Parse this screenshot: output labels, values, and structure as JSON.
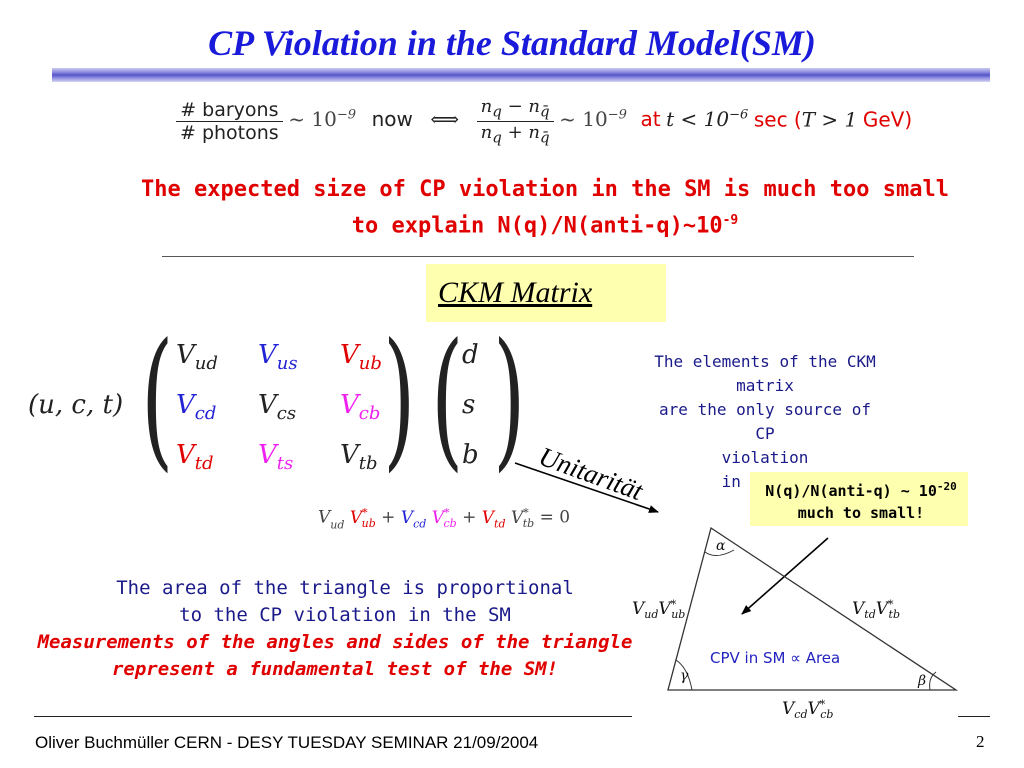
{
  "slide": {
    "title": "CP Violation in the Standard Model(SM)",
    "page_number": "2",
    "footer": "Oliver Buchmüller CERN - DESY TUESDAY SEMINAR 21/09/2004"
  },
  "equation": {
    "baryons": "# baryons",
    "photons": "# photons",
    "sim1": "~ 10",
    "exp1": "−9",
    "now": "now",
    "iff": "⟺",
    "nq_num": "n",
    "nq_sub": "q",
    "minus": " − ",
    "plus": " + ",
    "nqbar_sub": "q̄",
    "sim2": "~ 10",
    "exp2": "−9",
    "at": "at",
    "t_lt": "t < 10",
    "exp3": "−6",
    "sec": "sec (",
    "T_gt": "T > 1",
    "gev": "GeV)"
  },
  "warning": {
    "line1": "The expected size of CP violation in the SM is much too small",
    "line2_prefix": "to explain N(q)/N(anti-q)~10",
    "line2_exp": "-9"
  },
  "ckm": {
    "label": "CKM Matrix",
    "row_vector": "(u, c, t)",
    "matrix": [
      [
        {
          "v": "V",
          "s": "ud",
          "color": "#222222"
        },
        {
          "v": "V",
          "s": "us",
          "color": "#2323d6"
        },
        {
          "v": "V",
          "s": "ub",
          "color": "#e00000"
        }
      ],
      [
        {
          "v": "V",
          "s": "cd",
          "color": "#2323d6"
        },
        {
          "v": "V",
          "s": "cs",
          "color": "#222222"
        },
        {
          "v": "V",
          "s": "cb",
          "color": "#f020f0"
        }
      ],
      [
        {
          "v": "V",
          "s": "td",
          "color": "#e00000"
        },
        {
          "v": "V",
          "s": "ts",
          "color": "#f020f0"
        },
        {
          "v": "V",
          "s": "tb",
          "color": "#222222"
        }
      ]
    ],
    "column_vector": [
      "d",
      "s",
      "b"
    ]
  },
  "unitarity": {
    "label": "Unitarität",
    "t1": "V",
    "t1s": "ud",
    "t2": "V",
    "t2s": "ub",
    "t2p": "*",
    "t3": "V",
    "t3s": "cd",
    "t4": "V",
    "t4s": "cb",
    "t4p": "*",
    "t5": "V",
    "t5s": "td",
    "t6": "V",
    "t6s": "tb",
    "t6p": "*",
    "plus": "+",
    "eq": "= 0"
  },
  "elements": {
    "line1": "The elements of the CKM",
    "line2": "matrix",
    "line3": "are the only source of CP",
    "line4": "violation",
    "line5": "in the SM"
  },
  "ratio_box": {
    "line1_prefix": "N(q)/N(anti-q)  ~ 10",
    "line1_exp": "-20",
    "line2": "much to small!"
  },
  "area": {
    "line1": "The area of the triangle is proportional",
    "line2": "to the CP violation in the SM"
  },
  "measurements": {
    "line1": "Measurements of the angles and sides of the triangle",
    "line2": "represent a fundamental test of the SM!"
  },
  "triangle": {
    "alpha": "α",
    "beta": "β",
    "gamma": "γ",
    "center": "CPV in SM ∝ Area",
    "left_v1": "V",
    "left_s1": "ud",
    "left_v2": "V",
    "left_s2": "ub",
    "left_p": "*",
    "right_v1": "V",
    "right_s1": "td",
    "right_v2": "V",
    "right_s2": "tb",
    "right_p": "*",
    "bottom_v1": "V",
    "bottom_s1": "cd",
    "bottom_v2": "V",
    "bottom_s2": "cb",
    "bottom_p": "*"
  }
}
